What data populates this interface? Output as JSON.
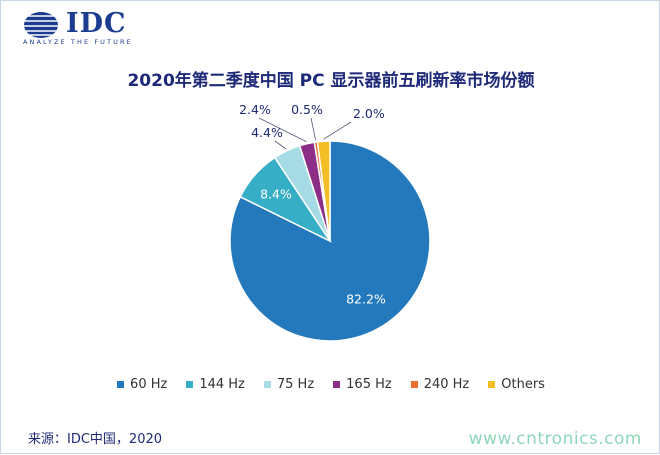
{
  "logo": {
    "word": "IDC",
    "tagline": "ANALYZE THE FUTURE"
  },
  "chart_data": {
    "type": "pie",
    "title": "2020年第二季度中国 PC 显示器前五刷新率市场份额",
    "categories": [
      "60 Hz",
      "144 Hz",
      "75 Hz",
      "165 Hz",
      "240 Hz",
      "Others"
    ],
    "values": [
      82.2,
      8.4,
      4.4,
      2.4,
      0.5,
      2.0
    ],
    "value_labels": [
      "82.2%",
      "8.4%",
      "4.4%",
      "2.4%",
      "0.5%",
      "2.0%"
    ],
    "unit": "%",
    "colors": [
      "#2479bd",
      "#36aec6",
      "#a6dbe6",
      "#8c2e87",
      "#e86f2c",
      "#f3bd25"
    ],
    "legend_position": "bottom",
    "start_angle_deg": 0,
    "direction": "clockwise"
  },
  "source": "来源：IDC中国，2020",
  "watermark": "www.cntronics.com"
}
